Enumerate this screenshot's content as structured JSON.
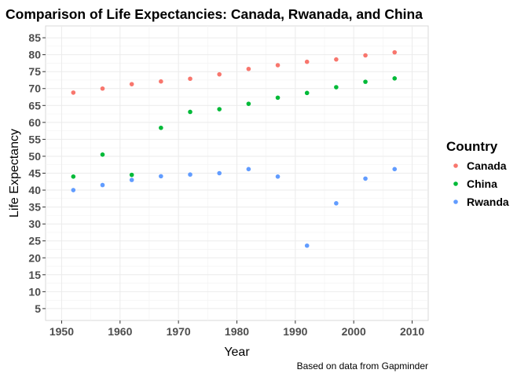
{
  "chart_data": {
    "type": "scatter",
    "title": "Comparison of Life Expectancies: Canada, Rwanada, and China",
    "xlabel": "Year",
    "ylabel": "Life Expectancy",
    "caption": "Based on data from Gapminder",
    "xlim": [
      1947.25,
      2012.75
    ],
    "ylim": [
      1.5,
      88.5
    ],
    "x_ticks": [
      1950,
      1960,
      1970,
      1980,
      1990,
      2000,
      2010
    ],
    "y_ticks": [
      5,
      10,
      15,
      20,
      25,
      30,
      35,
      40,
      45,
      50,
      55,
      60,
      65,
      70,
      75,
      80,
      85
    ],
    "grid": true,
    "legend": {
      "title": "Country",
      "placement": "right"
    },
    "x": [
      1952,
      1957,
      1962,
      1967,
      1972,
      1977,
      1982,
      1987,
      1992,
      1997,
      2002,
      2007
    ],
    "series": [
      {
        "name": "Canada",
        "color": "#F8766D",
        "values": [
          68.8,
          70.0,
          71.3,
          72.1,
          72.9,
          74.2,
          75.8,
          76.9,
          77.9,
          78.6,
          79.8,
          80.7
        ]
      },
      {
        "name": "China",
        "color": "#00BA38",
        "values": [
          44.0,
          50.5,
          44.5,
          58.4,
          63.1,
          63.9,
          65.5,
          67.3,
          68.7,
          70.4,
          72.0,
          73.0
        ]
      },
      {
        "name": "Rwanda",
        "color": "#619CFF",
        "values": [
          40.0,
          41.5,
          43.0,
          44.1,
          44.6,
          45.0,
          46.2,
          44.0,
          23.6,
          36.1,
          43.4,
          46.2
        ]
      }
    ]
  }
}
